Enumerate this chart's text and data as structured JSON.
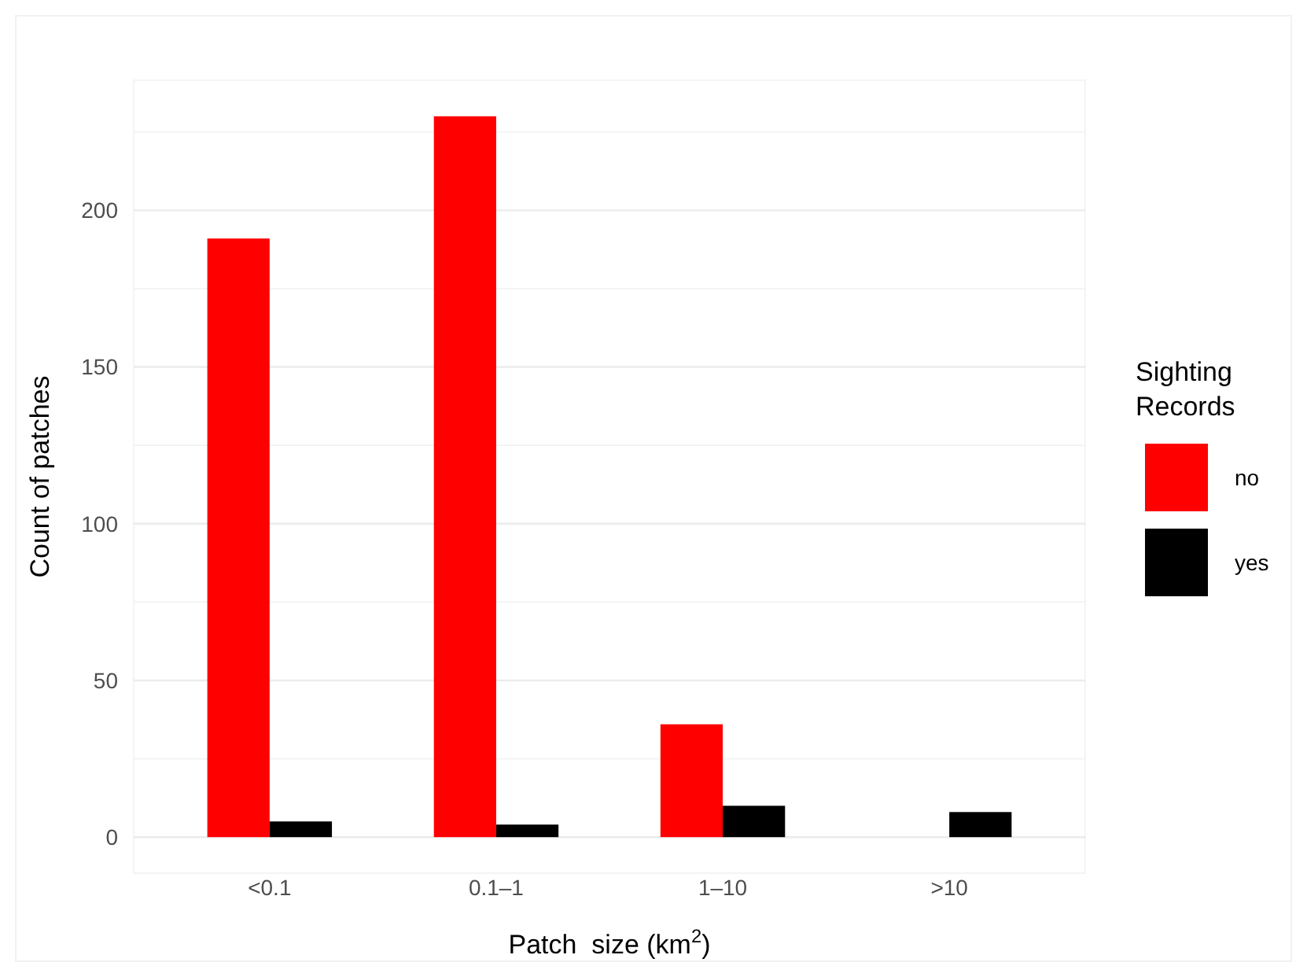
{
  "chart_data": {
    "type": "bar",
    "xlabel": "Patch  size (km$^{2}$)",
    "ylabel": "Count of patches",
    "legend_title": "Sighting Records",
    "categories": [
      "<0.1",
      "0.1–1",
      "1–10",
      ">10"
    ],
    "series": [
      {
        "name": "no",
        "color": "#ff0000",
        "values": [
          191,
          230,
          36,
          null
        ]
      },
      {
        "name": "yes",
        "color": "#000000",
        "values": [
          5,
          4,
          10,
          8
        ]
      }
    ],
    "ylim": [
      -11.5,
      241.5
    ],
    "yticks": [
      0,
      {
        "value": 25,
        "label": null
      },
      50,
      {
        "value": 75,
        "label": null
      },
      100,
      {
        "value": 125,
        "label": null
      },
      150,
      {
        "value": 175,
        "label": null
      },
      200,
      {
        "value": 225,
        "label": null
      }
    ],
    "grid": "y",
    "legend": "right"
  }
}
